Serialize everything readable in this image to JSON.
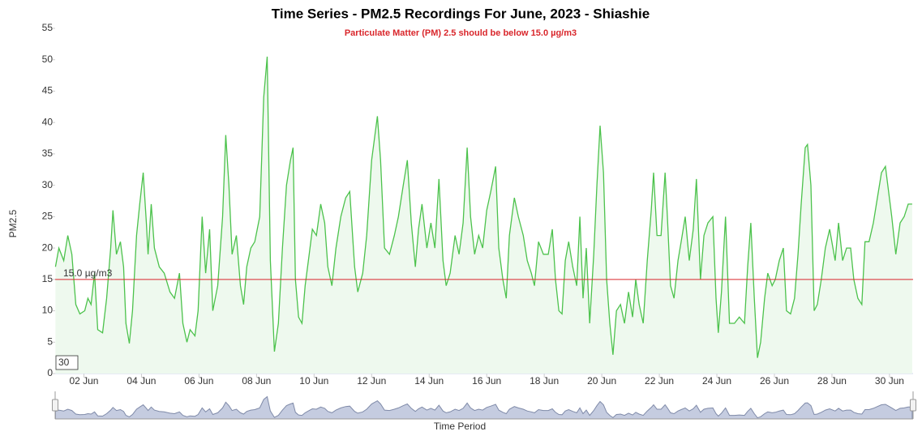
{
  "chart_data": {
    "type": "area",
    "title": "Time Series - PM2.5 Recordings For June, 2023 - Shiashie",
    "subtitle": "Particulate Matter (PM) 2.5 should be below 15.0 µg/m3",
    "y_label": "PM2.5",
    "x_label": "Time Period",
    "range_box": "30",
    "ylim": [
      0,
      55
    ],
    "yticks": [
      0,
      5,
      10,
      15,
      20,
      25,
      30,
      35,
      40,
      45,
      50,
      55
    ],
    "xlim": [
      1,
      30.82
    ],
    "xticks": [
      {
        "value": 2,
        "label": "02 Jun"
      },
      {
        "value": 4,
        "label": "04 Jun"
      },
      {
        "value": 6,
        "label": "06 Jun"
      },
      {
        "value": 8,
        "label": "08 Jun"
      },
      {
        "value": 10,
        "label": "10 Jun"
      },
      {
        "value": 12,
        "label": "12 Jun"
      },
      {
        "value": 14,
        "label": "14 Jun"
      },
      {
        "value": 16,
        "label": "16 Jun"
      },
      {
        "value": 18,
        "label": "18 Jun"
      },
      {
        "value": 20,
        "label": "20 Jun"
      },
      {
        "value": 22,
        "label": "22 Jun"
      },
      {
        "value": 24,
        "label": "24 Jun"
      },
      {
        "value": 26,
        "label": "26 Jun"
      },
      {
        "value": 28,
        "label": "28 Jun"
      },
      {
        "value": 30,
        "label": "30 Jun"
      }
    ],
    "threshold": {
      "value": 15,
      "label": "15.0 µg/m3",
      "color": "#d9262b"
    },
    "series": [
      {
        "name": "PM2.5",
        "color": "#4cc24c",
        "fill": "#eef9ee",
        "x": [
          1.01,
          1.13,
          1.3,
          1.44,
          1.58,
          1.72,
          1.86,
          2.03,
          2.14,
          2.25,
          2.37,
          2.48,
          2.65,
          2.79,
          2.93,
          3.01,
          3.13,
          3.27,
          3.38,
          3.46,
          3.58,
          3.69,
          3.83,
          3.94,
          4.06,
          4.17,
          4.23,
          4.34,
          4.45,
          4.62,
          4.79,
          4.99,
          5.15,
          5.32,
          5.44,
          5.58,
          5.69,
          5.86,
          5.97,
          6.11,
          6.23,
          6.37,
          6.48,
          6.65,
          6.82,
          6.93,
          7.04,
          7.15,
          7.3,
          7.44,
          7.55,
          7.66,
          7.8,
          7.94,
          8.11,
          8.25,
          8.37,
          8.48,
          8.62,
          8.76,
          8.9,
          9.04,
          9.18,
          9.27,
          9.35,
          9.46,
          9.58,
          9.69,
          9.83,
          9.94,
          10.08,
          10.23,
          10.37,
          10.48,
          10.62,
          10.76,
          10.93,
          11.1,
          11.24,
          11.41,
          11.52,
          11.69,
          11.83,
          12.0,
          12.2,
          12.31,
          12.45,
          12.62,
          12.79,
          12.93,
          13.1,
          13.24,
          13.38,
          13.52,
          13.63,
          13.75,
          13.92,
          14.06,
          14.2,
          14.34,
          14.48,
          14.59,
          14.73,
          14.9,
          15.04,
          15.18,
          15.32,
          15.44,
          15.58,
          15.72,
          15.86,
          16.0,
          16.14,
          16.31,
          16.42,
          16.56,
          16.68,
          16.79,
          16.96,
          17.1,
          17.27,
          17.41,
          17.55,
          17.66,
          17.8,
          17.97,
          18.14,
          18.28,
          18.39,
          18.51,
          18.62,
          18.73,
          18.85,
          18.99,
          19.13,
          19.24,
          19.35,
          19.46,
          19.58,
          19.72,
          19.83,
          19.94,
          20.06,
          20.17,
          20.28,
          20.39,
          20.51,
          20.65,
          20.79,
          20.93,
          21.07,
          21.18,
          21.3,
          21.44,
          21.58,
          21.72,
          21.8,
          21.92,
          22.06,
          22.2,
          22.28,
          22.39,
          22.51,
          22.65,
          22.76,
          22.9,
          23.04,
          23.18,
          23.29,
          23.43,
          23.55,
          23.69,
          23.86,
          23.97,
          24.05,
          24.16,
          24.3,
          24.44,
          24.61,
          24.78,
          24.96,
          25.07,
          25.18,
          25.3,
          25.41,
          25.52,
          25.66,
          25.77,
          25.92,
          26.03,
          26.17,
          26.31,
          26.42,
          26.56,
          26.7,
          26.82,
          26.93,
          27.07,
          27.15,
          27.27,
          27.38,
          27.49,
          27.63,
          27.77,
          27.92,
          28.11,
          28.23,
          28.37,
          28.51,
          28.65,
          28.76,
          28.9,
          29.04,
          29.15,
          29.29,
          29.44,
          29.58,
          29.72,
          29.86,
          29.97,
          30.08,
          30.22,
          30.37,
          30.51,
          30.65,
          30.79
        ],
        "values": [
          17,
          20,
          18,
          22,
          19,
          11,
          9.5,
          10,
          12,
          11,
          16,
          7,
          6.5,
          12,
          20,
          26,
          19,
          21,
          17,
          8,
          4.8,
          10,
          22,
          27,
          32,
          24,
          19,
          27,
          20,
          17,
          16,
          13,
          12,
          16,
          8,
          5,
          7,
          6,
          10,
          25,
          16,
          23,
          10,
          14,
          25,
          38,
          30,
          19,
          22,
          14,
          11,
          17,
          20,
          21,
          25,
          44,
          50.5,
          18,
          3.5,
          8,
          20,
          30,
          34,
          36,
          15,
          9,
          8,
          14,
          19,
          23,
          22,
          27,
          24,
          17,
          14,
          20,
          25,
          28,
          29,
          17,
          13,
          16,
          22,
          34,
          41,
          34,
          20,
          19,
          22,
          25,
          30,
          34,
          24,
          17,
          23,
          27,
          20,
          24,
          20,
          31,
          18,
          14,
          16,
          22,
          19,
          24,
          36,
          25,
          19,
          22,
          20,
          26,
          29,
          33,
          20,
          15,
          12,
          22,
          28,
          25,
          22,
          18,
          16,
          14,
          21,
          19,
          19,
          23,
          15,
          10,
          9.5,
          18,
          21,
          17,
          14,
          25,
          12,
          20,
          8,
          19,
          30,
          39.5,
          32,
          15,
          8,
          3,
          10,
          11,
          8,
          13,
          9,
          15,
          11,
          8,
          18,
          26,
          32,
          22,
          22,
          32,
          25,
          14,
          12,
          18,
          21,
          25,
          18,
          23,
          31,
          15,
          22,
          24,
          25,
          12,
          6.5,
          13,
          25,
          8,
          8,
          9,
          8,
          17,
          24,
          12,
          2.5,
          5,
          12,
          16,
          14,
          15,
          18,
          20,
          10,
          9.5,
          12,
          19,
          27,
          36,
          36.5,
          30,
          10,
          11,
          15,
          20,
          23,
          18,
          24,
          18,
          20,
          20,
          15,
          12,
          11,
          21,
          21,
          24,
          28,
          32,
          33,
          29,
          25,
          19,
          24,
          25,
          27,
          27
        ]
      }
    ]
  }
}
